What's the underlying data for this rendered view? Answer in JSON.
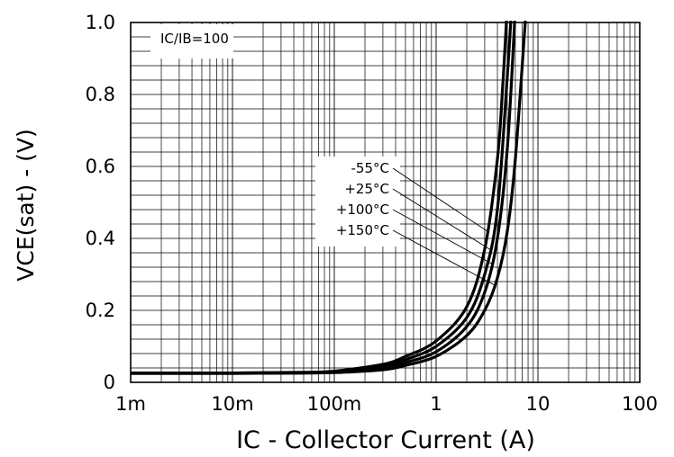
{
  "chart_data": {
    "type": "line",
    "xscale": "log",
    "xlim": [
      0.001,
      100
    ],
    "ylim": [
      0,
      1.0
    ],
    "grid": true,
    "x_tick_labels": [
      "1m",
      "10m",
      "100m",
      "1",
      "10",
      "100"
    ],
    "y_tick_labels": [
      "0",
      "0.2",
      "0.4",
      "0.6",
      "0.8",
      "1.0"
    ],
    "xlabel": "IC - Collector Current (A)",
    "ylabel": "VCE(sat) - (V)",
    "annotation": "IC/IB=100",
    "series": [
      {
        "name": "-55°C",
        "color": "#000000",
        "x": [
          0.001,
          0.01,
          0.05,
          0.1,
          0.3,
          0.5,
          1,
          2,
          3,
          4,
          4.5,
          4.9
        ],
        "y": [
          0.026,
          0.026,
          0.028,
          0.031,
          0.05,
          0.072,
          0.115,
          0.21,
          0.37,
          0.62,
          0.82,
          1.0
        ]
      },
      {
        "name": "+25°C",
        "color": "#000000",
        "x": [
          0.001,
          0.01,
          0.05,
          0.1,
          0.3,
          0.5,
          1,
          2,
          3,
          4,
          5,
          5.4
        ],
        "y": [
          0.026,
          0.026,
          0.027,
          0.03,
          0.045,
          0.063,
          0.1,
          0.18,
          0.3,
          0.48,
          0.85,
          1.0
        ]
      },
      {
        "name": "+100°C",
        "color": "#000000",
        "x": [
          0.001,
          0.01,
          0.05,
          0.1,
          0.3,
          0.5,
          1,
          2,
          3,
          4,
          5,
          5.9
        ],
        "y": [
          0.025,
          0.025,
          0.026,
          0.028,
          0.04,
          0.055,
          0.085,
          0.155,
          0.25,
          0.4,
          0.65,
          1.0
        ]
      },
      {
        "name": "+150°C",
        "color": "#000000",
        "x": [
          0.001,
          0.01,
          0.05,
          0.1,
          0.3,
          0.5,
          1,
          2,
          3,
          4,
          5,
          6,
          7.5
        ],
        "y": [
          0.025,
          0.025,
          0.026,
          0.027,
          0.035,
          0.047,
          0.072,
          0.13,
          0.2,
          0.29,
          0.42,
          0.62,
          1.0
        ]
      }
    ],
    "legend_placement": "center"
  }
}
